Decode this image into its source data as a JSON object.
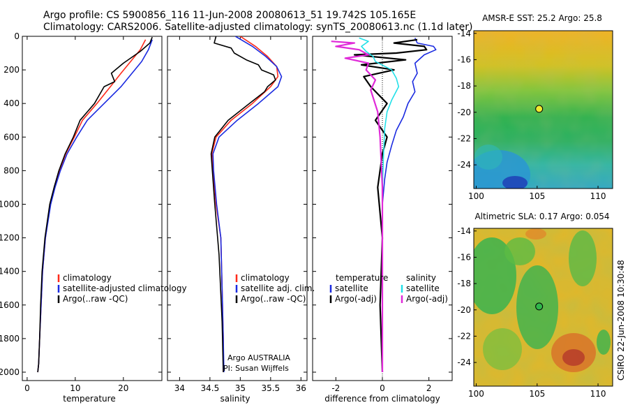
{
  "header": {
    "line1": "Argo profile: CS 5900856_116 11-Jun-2008 20080613_51 19.742S 105.165E",
    "line2": "Climatology: CARS2006. Satellite-adjusted climatology: synTS_20080613.nc (1.1d later)"
  },
  "side_label": "CSIRO 22-Jun-2008 10:30:48",
  "colors": {
    "climatology": "#ff2a1a",
    "satellite": "#1a2ae0",
    "argo": "#000000",
    "sal_satellite": "#22e0e8",
    "sal_argo": "#e02ad8"
  },
  "chart_data": [
    {
      "type": "line",
      "xlabel": "temperature",
      "xlim": [
        -1,
        28
      ],
      "ylim": [
        2050,
        0
      ],
      "x_ticks": [
        0,
        10,
        20
      ],
      "y_ticks": [
        0,
        200,
        400,
        600,
        800,
        1000,
        1200,
        1400,
        1600,
        1800,
        2000
      ],
      "legend": [
        "climatology",
        "satellite-adjusted climatology",
        "Argo(..raw -QC)"
      ],
      "series": [
        {
          "name": "climatology",
          "color": "climatology",
          "x": [
            24.6,
            23.5,
            21.5,
            19.5,
            17.3,
            14.5,
            11.5,
            9.8,
            8.0,
            6.7,
            5.7,
            4.8,
            3.8,
            3.2,
            2.9,
            2.6,
            2.4,
            2.2
          ],
          "y": [
            20,
            80,
            150,
            220,
            300,
            400,
            500,
            600,
            700,
            800,
            900,
            1000,
            1200,
            1400,
            1600,
            1800,
            1950,
            2000
          ]
        },
        {
          "name": "satellite-adjusted climatology",
          "color": "satellite",
          "x": [
            26.0,
            25.2,
            23.8,
            21.8,
            19.5,
            16.0,
            12.5,
            10.3,
            8.3,
            6.9,
            5.8,
            4.9,
            3.8,
            3.2,
            2.9,
            2.6,
            2.4,
            2.2
          ],
          "y": [
            20,
            80,
            150,
            220,
            300,
            400,
            500,
            600,
            700,
            800,
            900,
            1000,
            1200,
            1400,
            1600,
            1800,
            1950,
            2000
          ]
        },
        {
          "name": "Argo(..raw -QC)",
          "color": "argo",
          "x": [
            26.0,
            25.5,
            23.5,
            20.0,
            17.5,
            18.2,
            16.0,
            14.0,
            11.0,
            9.6,
            7.9,
            6.6,
            5.6,
            4.7,
            3.7,
            3.1,
            2.8,
            2.6,
            2.4,
            2.2
          ],
          "y": [
            5,
            40,
            90,
            160,
            220,
            270,
            300,
            400,
            500,
            600,
            700,
            800,
            900,
            1000,
            1200,
            1400,
            1600,
            1800,
            1950,
            2000
          ]
        }
      ]
    },
    {
      "type": "line",
      "xlabel": "salinity",
      "xlim": [
        33.8,
        36.1
      ],
      "ylim": [
        2050,
        0
      ],
      "x_ticks": [
        34,
        34.5,
        35,
        35.5,
        36
      ],
      "legend": [
        "climatology",
        "satellite adj. clim.",
        "Argo(..raw -QC)"
      ],
      "annotation": [
        "Argo AUSTRALIA",
        "PI: Susan Wijffels"
      ],
      "series": [
        {
          "name": "climatology",
          "color": "climatology",
          "x": [
            35.0,
            35.25,
            35.45,
            35.6,
            35.62,
            35.5,
            35.2,
            34.85,
            34.6,
            34.53,
            34.55,
            34.6,
            34.68,
            34.7,
            34.72,
            34.72
          ],
          "y": [
            0,
            60,
            120,
            180,
            240,
            300,
            400,
            500,
            600,
            700,
            800,
            1000,
            1200,
            1500,
            1800,
            2000
          ]
        },
        {
          "name": "satellite adj. clim.",
          "color": "satellite",
          "x": [
            34.92,
            35.2,
            35.42,
            35.6,
            35.68,
            35.62,
            35.3,
            34.95,
            34.65,
            34.55,
            34.56,
            34.61,
            34.68,
            34.7,
            34.72,
            34.73
          ],
          "y": [
            0,
            60,
            120,
            180,
            240,
            300,
            400,
            500,
            600,
            700,
            800,
            1000,
            1200,
            1500,
            1800,
            2000
          ]
        },
        {
          "name": "Argo(..raw -QC)",
          "color": "argo",
          "x": [
            34.6,
            34.57,
            34.85,
            34.9,
            35.1,
            35.3,
            35.35,
            35.55,
            35.58,
            35.45,
            35.4,
            35.15,
            34.8,
            34.58,
            34.52,
            34.54,
            34.58,
            34.65,
            34.7,
            34.72
          ],
          "y": [
            0,
            40,
            70,
            100,
            140,
            170,
            200,
            230,
            260,
            300,
            330,
            400,
            500,
            600,
            700,
            800,
            1000,
            1300,
            1700,
            2000
          ]
        }
      ]
    },
    {
      "type": "line",
      "xlabel": "difference from climatology",
      "xlim": [
        -3,
        3
      ],
      "ylim": [
        2050,
        0
      ],
      "x_ticks": [
        -2,
        0,
        2
      ],
      "legend_left": [
        "temperature",
        "satellite",
        "Argo(-adj)"
      ],
      "legend_right": [
        "salinity",
        "satellite",
        "Argo(-adj)"
      ],
      "series": [
        {
          "name": "temperature satellite",
          "color": "satellite",
          "x": [
            1.4,
            1.5,
            2.2,
            2.3,
            1.8,
            1.4,
            1.5,
            1.3,
            1.4,
            1.1,
            0.9,
            0.6,
            0.4,
            0.2,
            0.1,
            0.0,
            0.0,
            0.0
          ],
          "y": [
            10,
            40,
            60,
            80,
            110,
            160,
            220,
            270,
            330,
            400,
            480,
            560,
            650,
            750,
            850,
            1000,
            1500,
            2000
          ]
        },
        {
          "name": "temperature Argo(-adj)",
          "color": "argo",
          "x": [
            1.5,
            0.5,
            1.8,
            1.9,
            0.6,
            -1.2,
            1.0,
            -0.9,
            0.5,
            -0.8,
            -0.5,
            0.2,
            -0.3,
            0.2,
            0.0,
            -0.2,
            0.0,
            -0.1,
            0.0
          ],
          "y": [
            20,
            40,
            60,
            80,
            100,
            110,
            140,
            170,
            200,
            240,
            300,
            400,
            500,
            600,
            700,
            900,
            1200,
            1600,
            2000
          ]
        },
        {
          "name": "salinity satellite",
          "color": "sal_satellite",
          "x": [
            -1.0,
            -0.6,
            -0.9,
            -0.7,
            -0.4,
            -0.3,
            0.4,
            0.6,
            0.7,
            0.4,
            0.2,
            0.1,
            0.05,
            0.0,
            0.0,
            0.0,
            0.0
          ],
          "y": [
            10,
            30,
            60,
            90,
            120,
            150,
            200,
            250,
            300,
            380,
            450,
            550,
            700,
            900,
            1200,
            1600,
            2000
          ]
        },
        {
          "name": "salinity Argo(-adj)",
          "color": "sal_argo",
          "x": [
            -2.2,
            -1.2,
            -2.0,
            -1.0,
            -0.6,
            -1.6,
            -0.6,
            -0.7,
            -0.3,
            -0.5,
            -0.2,
            -0.1,
            0.0,
            0.0,
            0.0
          ],
          "y": [
            30,
            40,
            60,
            80,
            110,
            130,
            160,
            200,
            260,
            320,
            450,
            600,
            900,
            1400,
            2000
          ]
        }
      ]
    },
    {
      "type": "heatmap",
      "title": "AMSR-E SST: 25.2 Argo: 25.8",
      "xlim": [
        99.8,
        111.2
      ],
      "ylim": [
        -25.8,
        -13.8
      ],
      "x_ticks": [
        100,
        105,
        110
      ],
      "y_ticks": [
        -14,
        -16,
        -18,
        -20,
        -22,
        -24
      ],
      "marker": {
        "lon": 105.165,
        "lat": -19.742,
        "color": "#f0ea30"
      }
    },
    {
      "type": "heatmap",
      "title": "Altimetric SLA: 0.17 Argo: 0.054",
      "xlim": [
        99.8,
        111.2
      ],
      "ylim": [
        -25.8,
        -13.8
      ],
      "x_ticks": [
        100,
        105,
        110
      ],
      "y_ticks": [
        -14,
        -16,
        -18,
        -20,
        -22,
        -24
      ],
      "marker": {
        "lon": 105.165,
        "lat": -19.742,
        "color": "#2fb64a"
      }
    }
  ]
}
